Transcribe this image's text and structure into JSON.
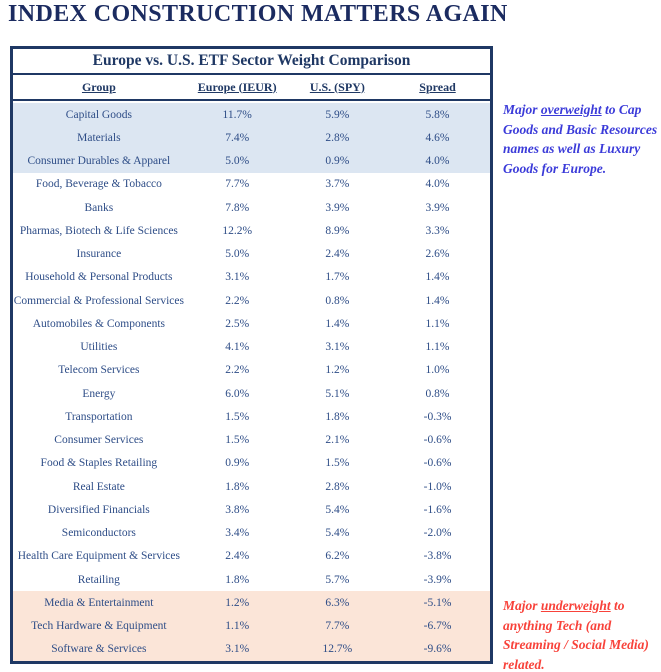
{
  "page_title": "INDEX CONSTRUCTION MATTERS AGAIN",
  "table": {
    "title": "Europe vs. U.S. ETF Sector Weight Comparison",
    "columns": [
      "Group",
      "Europe (IEUR)",
      "U.S. (SPY)",
      "Spread"
    ],
    "rows": [
      {
        "group": "Capital Goods",
        "europe": "11.7%",
        "us": "5.9%",
        "spread": "5.8%",
        "highlight": "blue"
      },
      {
        "group": "Materials",
        "europe": "7.4%",
        "us": "2.8%",
        "spread": "4.6%",
        "highlight": "blue"
      },
      {
        "group": "Consumer Durables & Apparel",
        "europe": "5.0%",
        "us": "0.9%",
        "spread": "4.0%",
        "highlight": "blue"
      },
      {
        "group": "Food, Beverage & Tobacco",
        "europe": "7.7%",
        "us": "3.7%",
        "spread": "4.0%",
        "highlight": "none"
      },
      {
        "group": "Banks",
        "europe": "7.8%",
        "us": "3.9%",
        "spread": "3.9%",
        "highlight": "none"
      },
      {
        "group": "Pharmas, Biotech & Life Sciences",
        "europe": "12.2%",
        "us": "8.9%",
        "spread": "3.3%",
        "highlight": "none"
      },
      {
        "group": "Insurance",
        "europe": "5.0%",
        "us": "2.4%",
        "spread": "2.6%",
        "highlight": "none"
      },
      {
        "group": "Household & Personal Products",
        "europe": "3.1%",
        "us": "1.7%",
        "spread": "1.4%",
        "highlight": "none"
      },
      {
        "group": "Commercial & Professional Services",
        "europe": "2.2%",
        "us": "0.8%",
        "spread": "1.4%",
        "highlight": "none"
      },
      {
        "group": "Automobiles & Components",
        "europe": "2.5%",
        "us": "1.4%",
        "spread": "1.1%",
        "highlight": "none"
      },
      {
        "group": "Utilities",
        "europe": "4.1%",
        "us": "3.1%",
        "spread": "1.1%",
        "highlight": "none"
      },
      {
        "group": "Telecom Services",
        "europe": "2.2%",
        "us": "1.2%",
        "spread": "1.0%",
        "highlight": "none"
      },
      {
        "group": "Energy",
        "europe": "6.0%",
        "us": "5.1%",
        "spread": "0.8%",
        "highlight": "none"
      },
      {
        "group": "Transportation",
        "europe": "1.5%",
        "us": "1.8%",
        "spread": "-0.3%",
        "highlight": "none"
      },
      {
        "group": "Consumer Services",
        "europe": "1.5%",
        "us": "2.1%",
        "spread": "-0.6%",
        "highlight": "none"
      },
      {
        "group": "Food & Staples Retailing",
        "europe": "0.9%",
        "us": "1.5%",
        "spread": "-0.6%",
        "highlight": "none"
      },
      {
        "group": "Real Estate",
        "europe": "1.8%",
        "us": "2.8%",
        "spread": "-1.0%",
        "highlight": "none"
      },
      {
        "group": "Diversified Financials",
        "europe": "3.8%",
        "us": "5.4%",
        "spread": "-1.6%",
        "highlight": "none"
      },
      {
        "group": "Semiconductors",
        "europe": "3.4%",
        "us": "5.4%",
        "spread": "-2.0%",
        "highlight": "none"
      },
      {
        "group": "Health Care Equipment & Services",
        "europe": "2.4%",
        "us": "6.2%",
        "spread": "-3.8%",
        "highlight": "none"
      },
      {
        "group": "Retailing",
        "europe": "1.8%",
        "us": "5.7%",
        "spread": "-3.9%",
        "highlight": "none"
      },
      {
        "group": "Media & Entertainment",
        "europe": "1.2%",
        "us": "6.3%",
        "spread": "-5.1%",
        "highlight": "peach"
      },
      {
        "group": "Tech Hardware & Equipment",
        "europe": "1.1%",
        "us": "7.7%",
        "spread": "-6.7%",
        "highlight": "peach"
      },
      {
        "group": "Software & Services",
        "europe": "3.1%",
        "us": "12.7%",
        "spread": "-9.6%",
        "highlight": "peach"
      }
    ]
  },
  "annotations": {
    "overweight": {
      "pre": "Major ",
      "underlined": "overweight",
      "post": " to Cap Goods and Basic Resources names as well as Luxury Goods for Europe.",
      "color": "#3b3bd9"
    },
    "underweight": {
      "pre": "Major ",
      "underlined": "underweight",
      "post": " to anything Tech (and Streaming / Social Media) related.",
      "color": "#f8423a"
    }
  },
  "colors": {
    "navy_border": "#1f3864",
    "navy_text": "#2e4d87",
    "title_navy": "#1b2b60",
    "overweight_row_bg": "#dce6f2",
    "underweight_row_bg": "#fbe5d8"
  }
}
